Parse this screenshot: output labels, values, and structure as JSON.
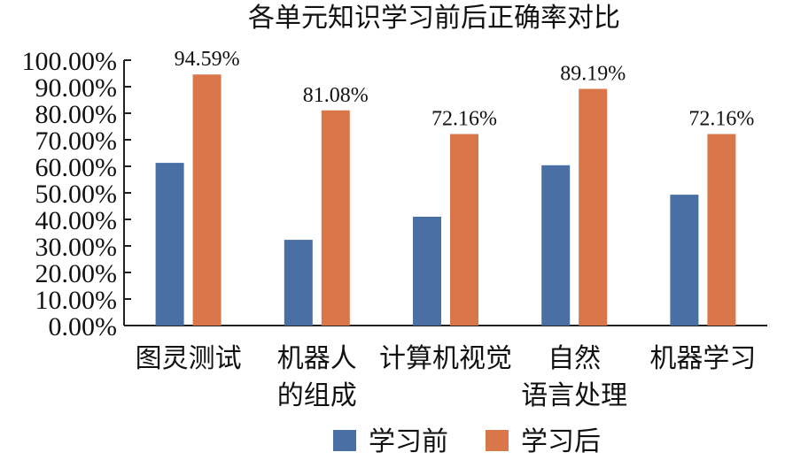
{
  "chart_data": {
    "type": "bar",
    "title": "各单元知识学习前后正确率对比",
    "xlabel": "",
    "ylabel": "",
    "ylim": [
      0,
      100
    ],
    "yticks": [
      "0.00%",
      "10.00%",
      "20.00%",
      "30.00%",
      "40.00%",
      "50.00%",
      "60.00%",
      "70.00%",
      "80.00%",
      "90.00%",
      "100.00%"
    ],
    "categories": [
      [
        "图灵测试"
      ],
      [
        "机器人",
        "的组成"
      ],
      [
        "计算机视觉"
      ],
      [
        "自然",
        "语言处理"
      ],
      [
        "机器学习"
      ]
    ],
    "series": [
      {
        "name": "学习前",
        "color": "#4a6fa5",
        "values": [
          61.3,
          32.3,
          41.0,
          60.4,
          49.3
        ],
        "labels": []
      },
      {
        "name": "学习后",
        "color": "#d9774b",
        "values": [
          94.59,
          81.08,
          72.16,
          89.19,
          72.16
        ],
        "labels": [
          "94.59%",
          "81.08%",
          "72.16%",
          "89.19%",
          "72.16%"
        ]
      }
    ],
    "legend": "bottom",
    "grid": false
  }
}
